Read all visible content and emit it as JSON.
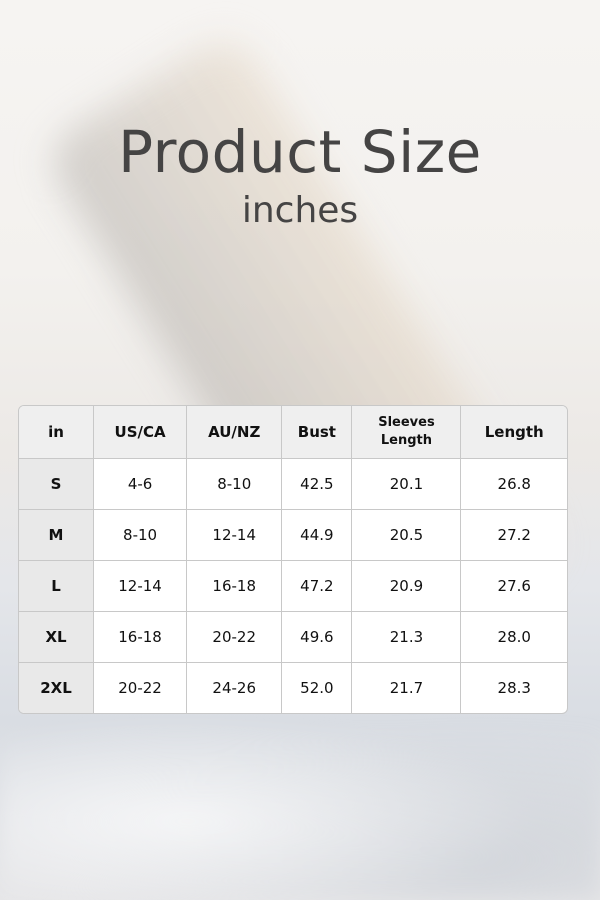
{
  "title": "Product Size",
  "subtitle": "inches",
  "table": {
    "headers": [
      "in",
      "US/CA",
      "AU/NZ",
      "Bust",
      "Sleeves Length",
      "Length"
    ],
    "rows": [
      [
        "S",
        "4-6",
        "8-10",
        "42.5",
        "20.1",
        "26.8"
      ],
      [
        "M",
        "8-10",
        "12-14",
        "44.9",
        "20.5",
        "27.2"
      ],
      [
        "L",
        "12-14",
        "16-18",
        "47.2",
        "20.9",
        "27.6"
      ],
      [
        "XL",
        "16-18",
        "20-22",
        "49.6",
        "21.3",
        "28.0"
      ],
      [
        "2XL",
        "20-22",
        "24-26",
        "52.0",
        "21.7",
        "28.3"
      ]
    ]
  }
}
